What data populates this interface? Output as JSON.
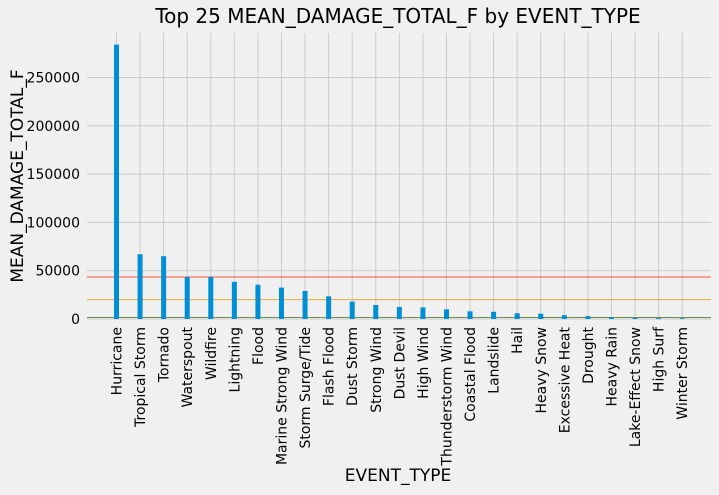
{
  "chart_data": {
    "type": "bar",
    "title": "Top 25 MEAN_DAMAGE_TOTAL_F by EVENT_TYPE",
    "xlabel": "EVENT_TYPE",
    "ylabel": "MEAN_DAMAGE_TOTAL_F",
    "ylim": [
      0,
      296000
    ],
    "yticks": [
      0,
      50000,
      100000,
      150000,
      200000,
      250000
    ],
    "ytick_labels": [
      "0",
      "50000",
      "100000",
      "150000",
      "200000",
      "250000"
    ],
    "grid": true,
    "categories": [
      "Hurricane",
      "Tropical Storm",
      "Tornado",
      "Waterspout",
      "Wildfire",
      "Lightning",
      "Flood",
      "Marine Strong Wind",
      "Storm Surge/Tide",
      "Flash Flood",
      "Dust Storm",
      "Strong Wind",
      "Dust Devil",
      "High Wind",
      "Thunderstorm Wind",
      "Coastal Flood",
      "Landslide",
      "Hail",
      "Heavy Snow",
      "Excessive Heat",
      "Drought",
      "Heavy Rain",
      "Lake-Effect Snow",
      "High Surf",
      "Winter Storm"
    ],
    "values": [
      284000,
      67000,
      65000,
      43500,
      43500,
      38500,
      35500,
      32500,
      29000,
      23500,
      18000,
      14500,
      12500,
      12000,
      10000,
      8000,
      7500,
      6000,
      5500,
      4000,
      3000,
      2000,
      1200,
      1000,
      500
    ],
    "reference_lines": [
      {
        "value": 43500,
        "color": "#fc4f30"
      },
      {
        "value": 20000,
        "color": "#e5ae38"
      },
      {
        "value": 1500,
        "color": "#6d904f"
      }
    ],
    "bar_color": "#008fd5",
    "grid_color": "#cbcbcb",
    "background_color": "#f0f0f0"
  }
}
